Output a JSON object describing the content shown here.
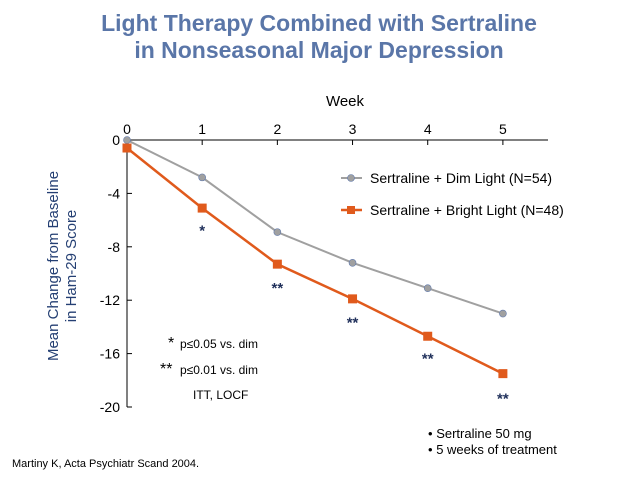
{
  "title_line1": "Light Therapy Combined with Sertraline",
  "title_line2": "in Nonseasonal Major Depression",
  "chart_data": {
    "type": "line",
    "xlabel": "Week",
    "ylabel_line1": "Mean Change from Baseline",
    "ylabel_line2": "in Ham-29 Score",
    "x": [
      0,
      1,
      2,
      3,
      4,
      5
    ],
    "x_ticks": [
      "0",
      "1",
      "2",
      "3",
      "4",
      "5"
    ],
    "xlim": [
      0,
      5.6
    ],
    "ylim": [
      -20,
      0
    ],
    "y_ticks": [
      0,
      -4,
      -8,
      -12,
      -16,
      -20
    ],
    "y_tick_labels": [
      "0",
      "-4",
      "-8",
      "-12",
      "-16",
      "-20"
    ],
    "grid": false,
    "series": [
      {
        "name": "Sertraline + Dim Light (N=54)",
        "color": "#a0a0a0",
        "marker": "circle",
        "values": [
          0,
          -2.8,
          -6.9,
          -9.2,
          -11.1,
          -13.0
        ]
      },
      {
        "name": "Sertraline + Bright Light (N=48)",
        "color": "#e05a1c",
        "marker": "square",
        "values": [
          -0.6,
          -5.1,
          -9.3,
          -11.9,
          -14.7,
          -17.5
        ]
      }
    ],
    "significance_marks": [
      {
        "x": 1,
        "y": -6.7,
        "label": "*"
      },
      {
        "x": 2,
        "y": -11.0,
        "label": "**"
      },
      {
        "x": 3,
        "y": -13.6,
        "label": "**"
      },
      {
        "x": 4,
        "y": -16.3,
        "label": "**"
      },
      {
        "x": 5,
        "y": -19.3,
        "label": "**"
      }
    ],
    "legend_position": "top-right",
    "annotations": {
      "single_star": "*",
      "single_star_text": "p≤0.05 vs. dim",
      "double_star": "**",
      "double_star_text": "p≤0.01 vs. dim",
      "itt_text": "ITT, LOCF"
    }
  },
  "notes": {
    "bullet_char": "•",
    "bullets": [
      "Sertraline 50 mg",
      "5 weeks of treatment"
    ],
    "citation": "Martiny K, Acta Psychiatr Scand 2004."
  }
}
